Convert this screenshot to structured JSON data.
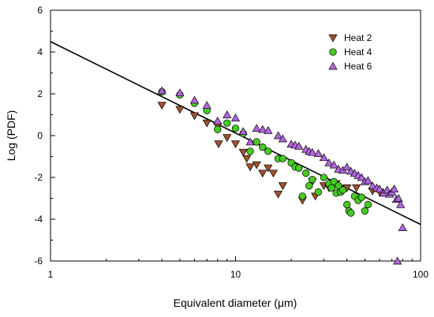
{
  "chart_data": {
    "type": "scatter",
    "title": "",
    "xlabel": "Equivalent diameter (μm)",
    "ylabel": "Log (PDF)",
    "x_scale": "log",
    "xlim": [
      1,
      100
    ],
    "ylim": [
      -6,
      6
    ],
    "x_ticks": [
      1,
      10,
      100
    ],
    "x_tick_labels": [
      "1",
      "10",
      "100"
    ],
    "y_ticks": [
      -6,
      -4,
      -2,
      0,
      2,
      4,
      6
    ],
    "y_tick_labels": [
      "-6",
      "-4",
      "-2",
      "0",
      "2",
      "4",
      "6"
    ],
    "grid": false,
    "legend_position": "top-right",
    "fit_line": {
      "x": [
        1,
        100
      ],
      "y": [
        4.5,
        -4.25
      ]
    },
    "series": [
      {
        "name": "Heat 2",
        "marker": "triangle-down",
        "color": "#a0522d",
        "points": [
          [
            4.0,
            1.45
          ],
          [
            5.0,
            1.25
          ],
          [
            6.0,
            0.95
          ],
          [
            7.0,
            0.6
          ],
          [
            8.0,
            0.45
          ],
          [
            8.1,
            -0.4
          ],
          [
            9.0,
            -0.1
          ],
          [
            10.0,
            -0.4
          ],
          [
            11.0,
            -0.8
          ],
          [
            11.5,
            -1.1
          ],
          [
            12.0,
            -1.5
          ],
          [
            13.0,
            -1.4
          ],
          [
            14.0,
            -1.8
          ],
          [
            15.0,
            -1.55
          ],
          [
            16.0,
            -1.8
          ],
          [
            17.0,
            -2.8
          ],
          [
            18.0,
            -2.4
          ],
          [
            23.0,
            -3.1
          ],
          [
            26.0,
            -2.2
          ],
          [
            27.0,
            -2.9
          ],
          [
            30.0,
            -2.4
          ],
          [
            32.0,
            -2.5
          ],
          [
            35.0,
            -2.3
          ],
          [
            40.0,
            -2.5
          ],
          [
            45.0,
            -2.5
          ],
          [
            55.0,
            -2.65
          ],
          [
            60.0,
            -2.7
          ]
        ]
      },
      {
        "name": "Heat 4",
        "marker": "circle",
        "color": "#44cc22",
        "points": [
          [
            4.0,
            2.1
          ],
          [
            5.0,
            1.95
          ],
          [
            6.0,
            1.55
          ],
          [
            7.0,
            1.2
          ],
          [
            8.0,
            0.3
          ],
          [
            9.0,
            0.6
          ],
          [
            10.0,
            0.35
          ],
          [
            11.0,
            0.1
          ],
          [
            12.0,
            -0.75
          ],
          [
            13.0,
            -0.3
          ],
          [
            14.0,
            -0.55
          ],
          [
            15.0,
            -0.75
          ],
          [
            17.0,
            -1.1
          ],
          [
            18.0,
            -1.1
          ],
          [
            20.0,
            -1.3
          ],
          [
            21.0,
            -1.5
          ],
          [
            22.0,
            -1.55
          ],
          [
            23.0,
            -2.9
          ],
          [
            24.0,
            -1.8
          ],
          [
            25.0,
            -2.4
          ],
          [
            26.0,
            -2.1
          ],
          [
            28.0,
            -2.7
          ],
          [
            30.0,
            -2.0
          ],
          [
            32.0,
            -2.3
          ],
          [
            33.0,
            -2.5
          ],
          [
            34.0,
            -2.2
          ],
          [
            35.0,
            -2.75
          ],
          [
            36.0,
            -2.4
          ],
          [
            37.0,
            -2.7
          ],
          [
            38.0,
            -2.6
          ],
          [
            40.0,
            -3.3
          ],
          [
            41.0,
            -3.6
          ],
          [
            42.0,
            -3.7
          ],
          [
            44.0,
            -2.9
          ],
          [
            46.0,
            -3.1
          ],
          [
            48.0,
            -2.95
          ],
          [
            50.0,
            -3.6
          ],
          [
            52.0,
            -3.3
          ]
        ]
      },
      {
        "name": "Heat 6",
        "marker": "triangle-up",
        "color": "#b266dd",
        "points": [
          [
            4.0,
            2.15
          ],
          [
            5.0,
            2.05
          ],
          [
            6.0,
            1.7
          ],
          [
            7.0,
            1.45
          ],
          [
            8.0,
            0.7
          ],
          [
            9.0,
            1.0
          ],
          [
            10.0,
            0.85
          ],
          [
            11.0,
            0.2
          ],
          [
            12.0,
            -0.3
          ],
          [
            13.0,
            0.35
          ],
          [
            14.0,
            0.3
          ],
          [
            15.0,
            0.25
          ],
          [
            17.0,
            0.0
          ],
          [
            18.0,
            -0.15
          ],
          [
            20.0,
            -0.4
          ],
          [
            21.0,
            -0.45
          ],
          [
            22.0,
            -0.5
          ],
          [
            24.0,
            -0.65
          ],
          [
            25.0,
            -0.75
          ],
          [
            26.0,
            -0.8
          ],
          [
            28.0,
            -0.85
          ],
          [
            30.0,
            -1.05
          ],
          [
            32.0,
            -1.3
          ],
          [
            34.0,
            -1.4
          ],
          [
            36.0,
            -1.6
          ],
          [
            38.0,
            -1.65
          ],
          [
            40.0,
            -1.5
          ],
          [
            42.0,
            -1.7
          ],
          [
            44.0,
            -1.8
          ],
          [
            46.0,
            -1.9
          ],
          [
            48.0,
            -2.0
          ],
          [
            50.0,
            -2.2
          ],
          [
            52.0,
            -2.15
          ],
          [
            55.0,
            -2.4
          ],
          [
            58.0,
            -2.5
          ],
          [
            60.0,
            -2.55
          ],
          [
            63.0,
            -2.75
          ],
          [
            66.0,
            -2.6
          ],
          [
            68.0,
            -2.8
          ],
          [
            70.0,
            -2.7
          ],
          [
            72.0,
            -2.55
          ],
          [
            74.0,
            -3.05
          ],
          [
            76.0,
            -3.0
          ],
          [
            78.0,
            -3.3
          ],
          [
            80.0,
            -4.4
          ],
          [
            75.0,
            -6.0
          ]
        ]
      }
    ]
  }
}
